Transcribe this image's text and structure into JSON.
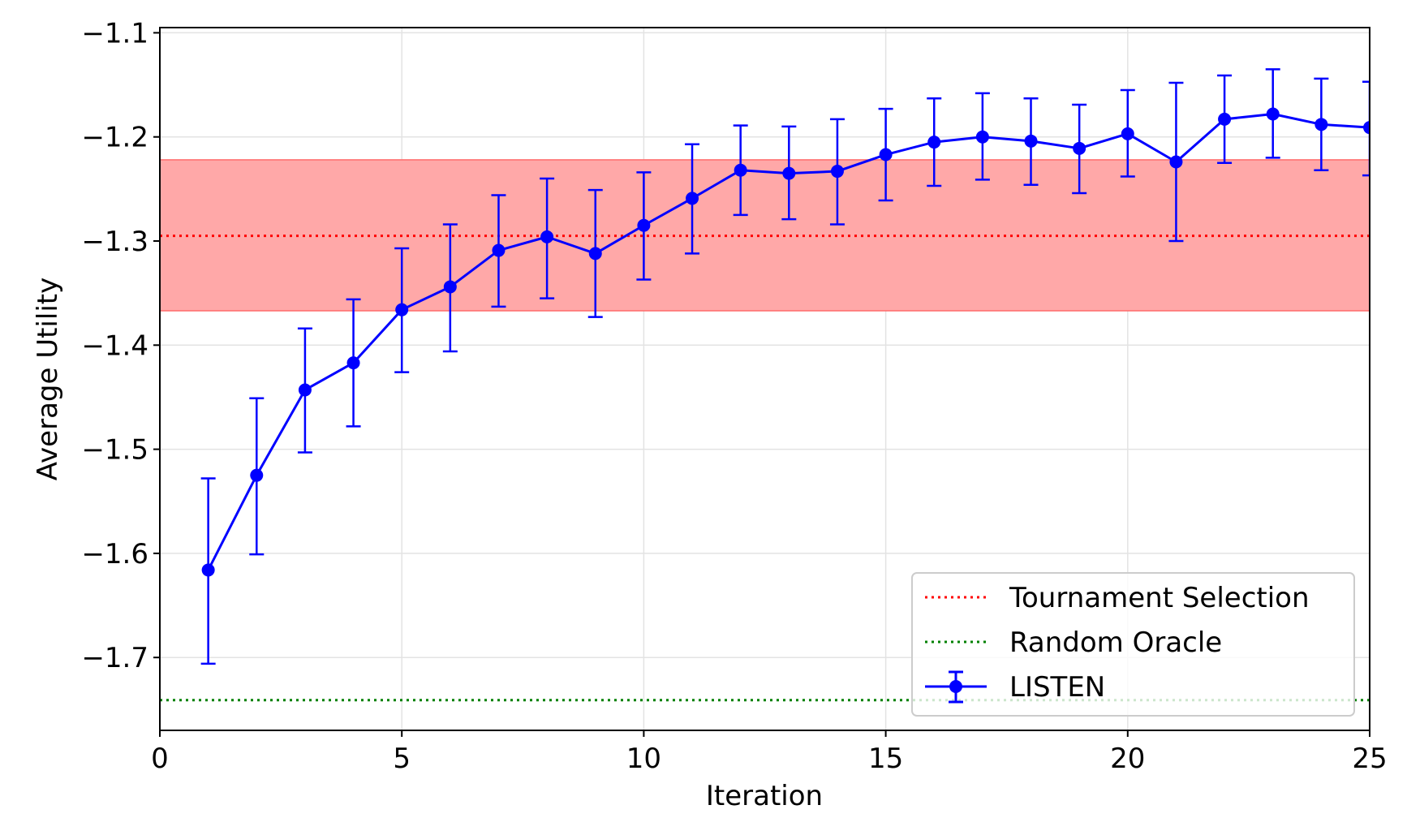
{
  "chart_data": {
    "type": "line",
    "title": "",
    "xlabel": "Iteration",
    "ylabel": "Average Utility",
    "xlim": [
      0,
      25
    ],
    "ylim": [
      -1.77,
      -1.095
    ],
    "xticks": [
      0,
      5,
      10,
      15,
      20,
      25
    ],
    "xtick_labels": [
      "0",
      "5",
      "10",
      "15",
      "20",
      "25"
    ],
    "yticks": [
      -1.7,
      -1.6,
      -1.5,
      -1.4,
      -1.3,
      -1.2,
      -1.1
    ],
    "ytick_labels": [
      "−1.7",
      "−1.6",
      "−1.5",
      "−1.4",
      "−1.3",
      "−1.2",
      "−1.1"
    ],
    "grid": true,
    "legend_position": "lower-right",
    "series": [
      {
        "name": "LISTEN",
        "color": "#0000ff",
        "marker": "circle",
        "error_bars": true,
        "x": [
          1,
          2,
          3,
          4,
          5,
          6,
          7,
          8,
          9,
          10,
          11,
          12,
          13,
          14,
          15,
          16,
          17,
          18,
          19,
          20,
          21,
          22,
          23,
          24,
          25
        ],
        "y": [
          -1.616,
          -1.525,
          -1.443,
          -1.417,
          -1.366,
          -1.344,
          -1.309,
          -1.296,
          -1.312,
          -1.285,
          -1.259,
          -1.232,
          -1.235,
          -1.233,
          -1.217,
          -1.205,
          -1.2,
          -1.204,
          -1.211,
          -1.197,
          -1.224,
          -1.183,
          -1.178,
          -1.188,
          -1.191
        ],
        "err_low": [
          -1.706,
          -1.601,
          -1.503,
          -1.478,
          -1.426,
          -1.406,
          -1.363,
          -1.355,
          -1.373,
          -1.337,
          -1.312,
          -1.275,
          -1.279,
          -1.284,
          -1.261,
          -1.247,
          -1.241,
          -1.246,
          -1.254,
          -1.238,
          -1.3,
          -1.225,
          -1.22,
          -1.232,
          -1.237
        ],
        "err_high": [
          -1.528,
          -1.451,
          -1.384,
          -1.356,
          -1.307,
          -1.284,
          -1.256,
          -1.24,
          -1.251,
          -1.234,
          -1.207,
          -1.189,
          -1.19,
          -1.183,
          -1.173,
          -1.163,
          -1.158,
          -1.163,
          -1.169,
          -1.155,
          -1.148,
          -1.141,
          -1.135,
          -1.144,
          -1.147
        ]
      }
    ],
    "reference_lines": [
      {
        "name": "Tournament Selection",
        "y": -1.295,
        "color": "#ff0000",
        "style": "dotted",
        "band": [
          -1.367,
          -1.222
        ],
        "band_color": "#ffa8a8"
      },
      {
        "name": "Random Oracle",
        "y": -1.741,
        "color": "#008000",
        "style": "dotted"
      }
    ],
    "legend": [
      "Tournament Selection",
      "Random Oracle",
      "LISTEN"
    ]
  }
}
